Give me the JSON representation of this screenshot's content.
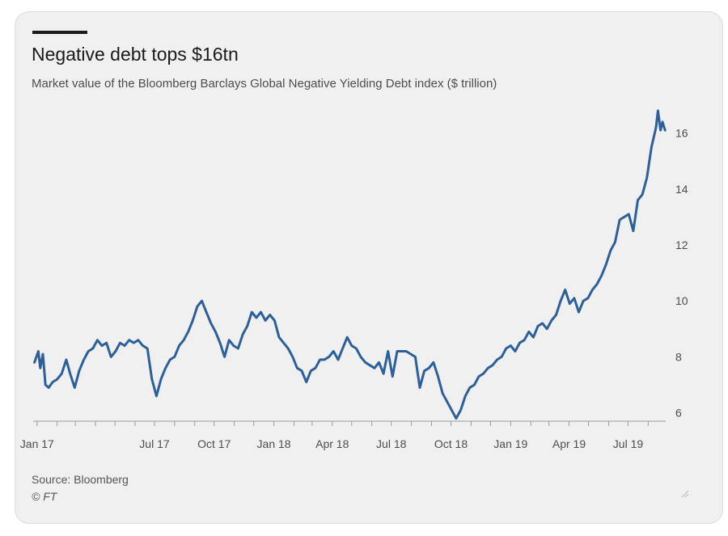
{
  "title": "Negative debt tops $16tn",
  "subtitle": "Market value of the Bloomberg Barclays Global Negative Yielding Debt index ($ trillion)",
  "source": "Source: Bloomberg",
  "credit": "© FT",
  "colors": {
    "line": "#2d5f9a",
    "background": "#f0f0f0",
    "text": "#4d4d4d"
  },
  "chart_data": {
    "type": "line",
    "title": "Negative debt tops $16tn",
    "ylabel": "",
    "xlabel": "",
    "x_tick_labels": [
      "Jan 17",
      "Jul 17",
      "Oct 17",
      "Jan 18",
      "Apr 18",
      "Jul 18",
      "Oct 18",
      "Jan 19",
      "Apr 19",
      "Jul 19"
    ],
    "x_tick_dates": [
      "2017-01-01",
      "2017-07-01",
      "2017-10-01",
      "2018-01-01",
      "2018-04-01",
      "2018-07-01",
      "2018-10-01",
      "2019-01-01",
      "2019-04-01",
      "2019-07-01"
    ],
    "y_ticks": [
      6,
      8,
      10,
      12,
      14,
      16
    ],
    "ylim": [
      5.7,
      17
    ],
    "xlim": [
      "2016-12-26",
      "2019-08-28"
    ],
    "y_axis_position": "right",
    "grid": false,
    "series": [
      {
        "values": [
          [
            "2016-12-28",
            7.8
          ],
          [
            "2017-01-03",
            8.2
          ],
          [
            "2017-01-06",
            7.6
          ],
          [
            "2017-01-10",
            8.1
          ],
          [
            "2017-01-14",
            7.0
          ],
          [
            "2017-01-19",
            6.9
          ],
          [
            "2017-01-25",
            7.1
          ],
          [
            "2017-02-01",
            7.2
          ],
          [
            "2017-02-08",
            7.4
          ],
          [
            "2017-02-15",
            7.9
          ],
          [
            "2017-02-21",
            7.4
          ],
          [
            "2017-02-28",
            6.9
          ],
          [
            "2017-03-07",
            7.5
          ],
          [
            "2017-03-14",
            7.9
          ],
          [
            "2017-03-21",
            8.2
          ],
          [
            "2017-03-28",
            8.3
          ],
          [
            "2017-04-04",
            8.6
          ],
          [
            "2017-04-11",
            8.4
          ],
          [
            "2017-04-18",
            8.5
          ],
          [
            "2017-04-25",
            8.0
          ],
          [
            "2017-05-02",
            8.2
          ],
          [
            "2017-05-09",
            8.5
          ],
          [
            "2017-05-16",
            8.4
          ],
          [
            "2017-05-23",
            8.6
          ],
          [
            "2017-05-30",
            8.5
          ],
          [
            "2017-06-06",
            8.6
          ],
          [
            "2017-06-13",
            8.4
          ],
          [
            "2017-06-20",
            8.3
          ],
          [
            "2017-06-27",
            7.2
          ],
          [
            "2017-07-04",
            6.6
          ],
          [
            "2017-07-11",
            7.2
          ],
          [
            "2017-07-18",
            7.6
          ],
          [
            "2017-07-25",
            7.9
          ],
          [
            "2017-08-01",
            8.0
          ],
          [
            "2017-08-08",
            8.4
          ],
          [
            "2017-08-15",
            8.6
          ],
          [
            "2017-08-22",
            8.9
          ],
          [
            "2017-08-29",
            9.3
          ],
          [
            "2017-09-05",
            9.8
          ],
          [
            "2017-09-12",
            10.0
          ],
          [
            "2017-09-19",
            9.6
          ],
          [
            "2017-09-26",
            9.2
          ],
          [
            "2017-10-03",
            8.9
          ],
          [
            "2017-10-10",
            8.5
          ],
          [
            "2017-10-17",
            8.0
          ],
          [
            "2017-10-24",
            8.6
          ],
          [
            "2017-10-31",
            8.4
          ],
          [
            "2017-11-07",
            8.3
          ],
          [
            "2017-11-14",
            8.8
          ],
          [
            "2017-11-21",
            9.1
          ],
          [
            "2017-11-28",
            9.6
          ],
          [
            "2017-12-05",
            9.4
          ],
          [
            "2017-12-12",
            9.6
          ],
          [
            "2017-12-19",
            9.3
          ],
          [
            "2017-12-26",
            9.5
          ],
          [
            "2018-01-02",
            9.3
          ],
          [
            "2018-01-09",
            8.7
          ],
          [
            "2018-01-16",
            8.5
          ],
          [
            "2018-01-23",
            8.3
          ],
          [
            "2018-01-30",
            8.0
          ],
          [
            "2018-02-06",
            7.6
          ],
          [
            "2018-02-13",
            7.5
          ],
          [
            "2018-02-20",
            7.1
          ],
          [
            "2018-02-27",
            7.5
          ],
          [
            "2018-03-06",
            7.6
          ],
          [
            "2018-03-13",
            7.9
          ],
          [
            "2018-03-20",
            7.9
          ],
          [
            "2018-03-27",
            8.0
          ],
          [
            "2018-04-03",
            8.2
          ],
          [
            "2018-04-10",
            7.9
          ],
          [
            "2018-04-17",
            8.3
          ],
          [
            "2018-04-24",
            8.7
          ],
          [
            "2018-05-01",
            8.4
          ],
          [
            "2018-05-08",
            8.3
          ],
          [
            "2018-05-15",
            8.0
          ],
          [
            "2018-05-22",
            7.8
          ],
          [
            "2018-05-29",
            7.7
          ],
          [
            "2018-06-05",
            7.6
          ],
          [
            "2018-06-12",
            7.8
          ],
          [
            "2018-06-19",
            7.4
          ],
          [
            "2018-06-26",
            8.2
          ],
          [
            "2018-07-03",
            7.3
          ],
          [
            "2018-07-10",
            8.2
          ],
          [
            "2018-07-17",
            8.2
          ],
          [
            "2018-07-24",
            8.2
          ],
          [
            "2018-07-31",
            8.1
          ],
          [
            "2018-08-07",
            8.0
          ],
          [
            "2018-08-14",
            6.9
          ],
          [
            "2018-08-21",
            7.5
          ],
          [
            "2018-08-28",
            7.6
          ],
          [
            "2018-09-04",
            7.8
          ],
          [
            "2018-09-11",
            7.3
          ],
          [
            "2018-09-18",
            6.7
          ],
          [
            "2018-09-25",
            6.4
          ],
          [
            "2018-10-02",
            6.1
          ],
          [
            "2018-10-09",
            5.8
          ],
          [
            "2018-10-16",
            6.1
          ],
          [
            "2018-10-23",
            6.6
          ],
          [
            "2018-10-30",
            6.9
          ],
          [
            "2018-11-06",
            7.0
          ],
          [
            "2018-11-13",
            7.3
          ],
          [
            "2018-11-20",
            7.4
          ],
          [
            "2018-11-27",
            7.6
          ],
          [
            "2018-12-04",
            7.7
          ],
          [
            "2018-12-11",
            7.9
          ],
          [
            "2018-12-18",
            8.0
          ],
          [
            "2018-12-25",
            8.3
          ],
          [
            "2019-01-01",
            8.4
          ],
          [
            "2019-01-08",
            8.2
          ],
          [
            "2019-01-15",
            8.5
          ],
          [
            "2019-01-22",
            8.6
          ],
          [
            "2019-01-29",
            8.9
          ],
          [
            "2019-02-05",
            8.7
          ],
          [
            "2019-02-12",
            9.1
          ],
          [
            "2019-02-19",
            9.2
          ],
          [
            "2019-02-26",
            9.0
          ],
          [
            "2019-03-05",
            9.3
          ],
          [
            "2019-03-12",
            9.5
          ],
          [
            "2019-03-19",
            10.0
          ],
          [
            "2019-03-26",
            10.4
          ],
          [
            "2019-04-02",
            9.9
          ],
          [
            "2019-04-09",
            10.1
          ],
          [
            "2019-04-16",
            9.6
          ],
          [
            "2019-04-23",
            10.0
          ],
          [
            "2019-04-30",
            10.1
          ],
          [
            "2019-05-07",
            10.4
          ],
          [
            "2019-05-14",
            10.6
          ],
          [
            "2019-05-21",
            10.9
          ],
          [
            "2019-05-28",
            11.3
          ],
          [
            "2019-06-04",
            11.8
          ],
          [
            "2019-06-11",
            12.1
          ],
          [
            "2019-06-18",
            12.9
          ],
          [
            "2019-06-25",
            13.0
          ],
          [
            "2019-07-02",
            13.1
          ],
          [
            "2019-07-09",
            12.5
          ],
          [
            "2019-07-16",
            13.6
          ],
          [
            "2019-07-23",
            13.8
          ],
          [
            "2019-07-30",
            14.4
          ],
          [
            "2019-08-06",
            15.5
          ],
          [
            "2019-08-13",
            16.2
          ],
          [
            "2019-08-16",
            16.8
          ],
          [
            "2019-08-20",
            16.1
          ],
          [
            "2019-08-23",
            16.4
          ],
          [
            "2019-08-27",
            16.1
          ]
        ]
      }
    ]
  }
}
